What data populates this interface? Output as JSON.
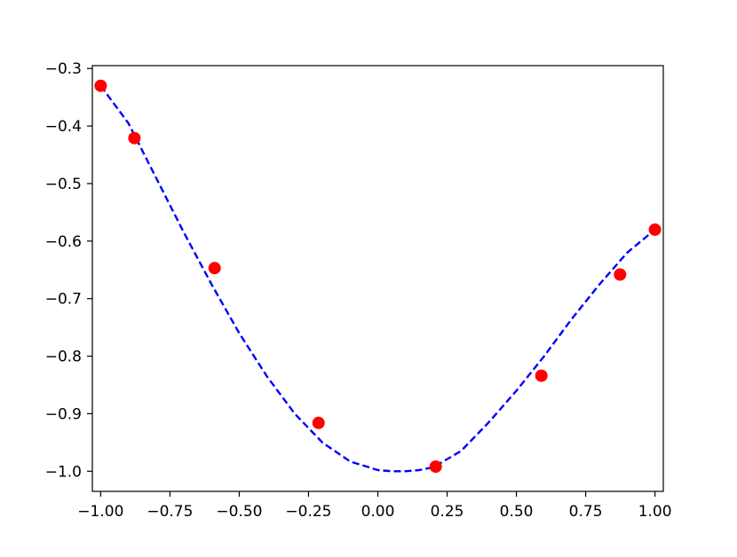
{
  "chart_data": {
    "type": "line",
    "title": "",
    "xlabel": "",
    "ylabel": "",
    "xlim": [
      -1.03,
      1.03
    ],
    "ylim": [
      -1.035,
      -0.295
    ],
    "xticks": [
      -1.0,
      -0.75,
      -0.5,
      -0.25,
      0.0,
      0.25,
      0.5,
      0.75,
      1.0
    ],
    "xtick_labels": [
      "−1.00",
      "−0.75",
      "−0.50",
      "−0.25",
      "0.00",
      "0.25",
      "0.50",
      "0.75",
      "1.00"
    ],
    "yticks": [
      -0.3,
      -0.4,
      -0.5,
      -0.6,
      -0.7,
      -0.8,
      -0.9,
      -1.0
    ],
    "ytick_labels": [
      "−0.3",
      "−0.4",
      "−0.5",
      "−0.6",
      "−0.7",
      "−0.8",
      "−0.9",
      "−1.0"
    ],
    "grid": false,
    "series": [
      {
        "style": "dashed-line",
        "color": "#0000ff",
        "x": [
          -1.0,
          -0.9,
          -0.8,
          -0.7,
          -0.6,
          -0.5,
          -0.4,
          -0.3,
          -0.2,
          -0.1,
          0.0,
          0.05,
          0.1,
          0.15,
          0.2,
          0.3,
          0.4,
          0.5,
          0.6,
          0.7,
          0.8,
          0.9,
          1.0
        ],
        "y": [
          -0.33,
          -0.395,
          -0.49,
          -0.585,
          -0.675,
          -0.76,
          -0.835,
          -0.9,
          -0.95,
          -0.983,
          -0.998,
          -1.0,
          -1.0,
          -0.998,
          -0.993,
          -0.965,
          -0.915,
          -0.86,
          -0.8,
          -0.735,
          -0.675,
          -0.62,
          -0.58
        ]
      },
      {
        "style": "markers",
        "color": "#ff0000",
        "x": [
          -1.0,
          -0.878,
          -0.589,
          -0.214,
          0.209,
          0.59,
          0.874,
          1.0
        ],
        "y": [
          -0.33,
          -0.421,
          -0.647,
          -0.916,
          -0.992,
          -0.834,
          -0.658,
          -0.58
        ]
      }
    ]
  }
}
